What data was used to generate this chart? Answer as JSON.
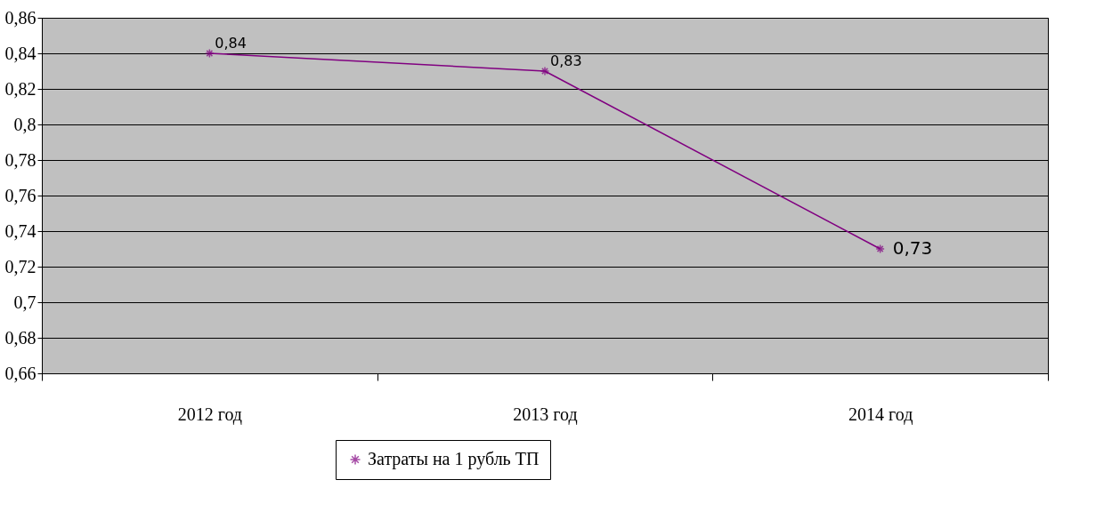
{
  "chart_data": {
    "type": "line",
    "categories": [
      "2012 год",
      "2013 год",
      "2014 год"
    ],
    "series": [
      {
        "name": "Затраты на 1 рубль ТП",
        "color": "#800080",
        "values": [
          0.84,
          0.83,
          0.73
        ],
        "value_labels": [
          "0,84",
          "0,83",
          "0,73"
        ]
      }
    ],
    "ylim": [
      0.66,
      0.86
    ],
    "yticks": [
      {
        "value": 0.66,
        "label": "0,66"
      },
      {
        "value": 0.68,
        "label": "0,68"
      },
      {
        "value": 0.7,
        "label": "0,7"
      },
      {
        "value": 0.72,
        "label": "0,72"
      },
      {
        "value": 0.74,
        "label": "0,74"
      },
      {
        "value": 0.76,
        "label": "0,76"
      },
      {
        "value": 0.78,
        "label": "0,78"
      },
      {
        "value": 0.8,
        "label": "0,8"
      },
      {
        "value": 0.82,
        "label": "0,82"
      },
      {
        "value": 0.84,
        "label": "0,84"
      },
      {
        "value": 0.86,
        "label": "0,86"
      }
    ],
    "grid": "y",
    "legend": "bottom",
    "marker": "cross",
    "line_style": "solid"
  }
}
